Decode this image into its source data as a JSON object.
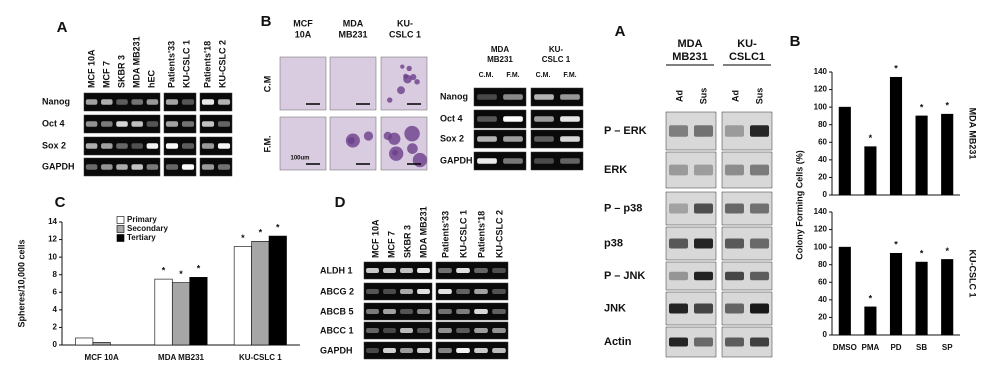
{
  "panel_a": {
    "label": "A",
    "lanes": [
      "MCF 10A",
      "MCF 7",
      "SKBR 3",
      "MDA MB231",
      "hEC",
      "Patients'33",
      "KU-CSLC 1",
      "Patients'18",
      "KU-CSLC 2"
    ],
    "rows": [
      "Nanog",
      "Oct 4",
      "Sox 2",
      "GAPDH"
    ]
  },
  "panel_b": {
    "label": "B",
    "columns": [
      [
        "MCF",
        "10A"
      ],
      [
        "MDA",
        "MB231"
      ],
      [
        "KU-",
        "CSLC 1"
      ]
    ],
    "rows": [
      "C.M",
      "F.M."
    ],
    "scale": "100um",
    "gel_groups": [
      [
        "MDA",
        "MB231"
      ],
      [
        "KU-",
        "CSLC 1"
      ]
    ],
    "gel_lanes": [
      "C.M.",
      "F.M.",
      "C.M.",
      "F.M."
    ],
    "gel_rows": [
      "Nanog",
      "Oct 4",
      "Sox 2",
      "GAPDH"
    ]
  },
  "panel_c": {
    "label": "C"
  },
  "panel_d": {
    "label": "D",
    "lanes": [
      "MCF 10A",
      "MCF 7",
      "SKBR 3",
      "MDA MB231",
      "Patients'33",
      "KU-CSLC 1",
      "Patients'18",
      "KU-CSLC 2"
    ],
    "rows": [
      "ALDH 1",
      "ABCG 2",
      "ABCB 5",
      "ABCC 1",
      "GAPDH"
    ]
  },
  "western": {
    "label": "A",
    "groups": [
      [
        "MDA",
        "MB231"
      ],
      [
        "KU-",
        "CSLC1"
      ]
    ],
    "lanes": [
      "Ad",
      "Sus",
      "Ad",
      "Sus"
    ],
    "rows": [
      "P – ERK",
      "ERK",
      "P – p38",
      "p38",
      "P – JNK",
      "JNK",
      "Actin"
    ]
  },
  "colony": {
    "label": "B",
    "y_label": "Colony Forming Cells (%)"
  },
  "chart_data": [
    {
      "type": "bar",
      "y_label": "Spheres/10,000 cells",
      "categories": [
        "MCF 10A",
        "MDA MB231",
        "KU-CSLC 1"
      ],
      "series": [
        {
          "name": "Primary",
          "color": "#ffffff",
          "values": [
            0.8,
            7.5,
            11.2
          ],
          "labels": [
            null,
            "*",
            "*"
          ]
        },
        {
          "name": "Secondary",
          "color": "#a6a6a6",
          "values": [
            0.3,
            7.1,
            11.8
          ],
          "labels": [
            null,
            "*",
            "*"
          ]
        },
        {
          "name": "Tertiary",
          "color": "#000000",
          "values": [
            0,
            7.7,
            12.4
          ],
          "labels": [
            null,
            "*",
            "*"
          ]
        }
      ],
      "ylim": [
        0,
        14
      ],
      "yticks": [
        0,
        2,
        4,
        6,
        8,
        10,
        12,
        14
      ],
      "legend": "upper left"
    },
    {
      "type": "bar",
      "title": "MDA MB231",
      "categories": [
        null,
        null,
        null,
        null,
        null
      ],
      "series": [
        {
          "color": "#000000",
          "values": [
            100,
            55,
            134,
            90,
            92
          ],
          "labels": [
            null,
            "*",
            "*",
            "*",
            "*"
          ]
        }
      ],
      "ylim": [
        0,
        140
      ],
      "yticks": [
        0,
        20,
        40,
        60,
        80,
        100,
        120,
        140
      ]
    },
    {
      "type": "bar",
      "title": "KU-CSLC 1",
      "categories": [
        "DMSO",
        "PMA",
        "PD",
        "SB",
        "SP"
      ],
      "series": [
        {
          "color": "#000000",
          "values": [
            100,
            32,
            93,
            83,
            86
          ],
          "labels": [
            null,
            "*",
            "*",
            "*",
            "*"
          ]
        }
      ],
      "ylim": [
        0,
        140
      ],
      "yticks": [
        0,
        20,
        40,
        60,
        80,
        100,
        120,
        140
      ]
    }
  ]
}
